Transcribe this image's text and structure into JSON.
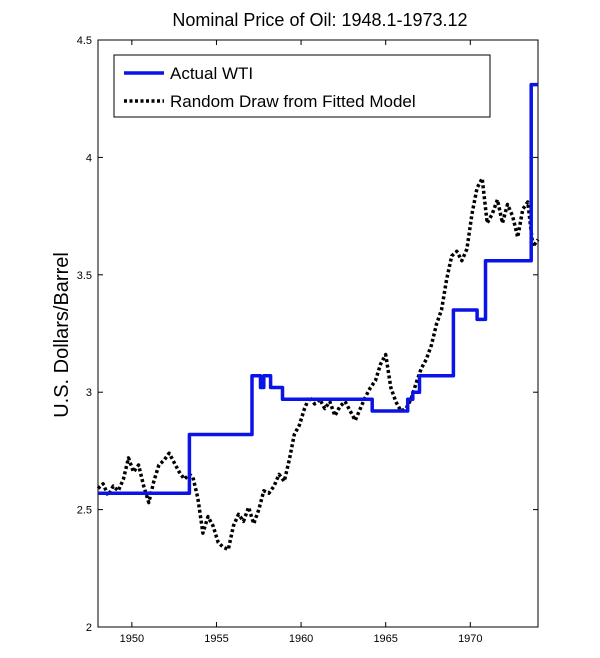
{
  "chart_data": {
    "type": "line",
    "title": "Nominal Price of Oil: 1948.1-1973.12",
    "xlabel": "",
    "ylabel": "U.S. Dollars/Barrel",
    "xlim": [
      1948,
      1974
    ],
    "ylim": [
      2,
      4.5
    ],
    "xticks": [
      1950,
      1955,
      1960,
      1965,
      1970
    ],
    "yticks": [
      2,
      2.5,
      3,
      3.5,
      4,
      4.5
    ],
    "ytick_labels": [
      "2",
      "2.5",
      "3",
      "3.5",
      "4",
      "4.5"
    ],
    "legend_position": "top-left",
    "series": [
      {
        "name": "Actual WTI",
        "style": "solid",
        "color": "#0a14e6",
        "x": [
          1948.0,
          1953.4,
          1953.4,
          1957.1,
          1957.1,
          1957.6,
          1957.6,
          1957.8,
          1957.8,
          1958.2,
          1958.2,
          1958.9,
          1958.9,
          1964.2,
          1964.2,
          1966.3,
          1966.3,
          1966.6,
          1966.6,
          1967.0,
          1967.0,
          1967.6,
          1967.6,
          1969.0,
          1969.0,
          1970.4,
          1970.4,
          1970.9,
          1970.9,
          1973.6,
          1973.6,
          1974.0
        ],
        "y": [
          2.57,
          2.57,
          2.82,
          2.82,
          3.07,
          3.07,
          3.02,
          3.02,
          3.07,
          3.07,
          3.02,
          3.02,
          2.97,
          2.97,
          2.92,
          2.92,
          2.97,
          2.97,
          3.0,
          3.0,
          3.07,
          3.07,
          3.07,
          3.07,
          3.35,
          3.35,
          3.31,
          3.31,
          3.56,
          3.56,
          4.31,
          4.31
        ]
      },
      {
        "name": "Random Draw from Fitted Model",
        "style": "dotted",
        "color": "#000000",
        "x": [
          1948.0,
          1948.3,
          1948.6,
          1948.9,
          1949.2,
          1949.5,
          1949.8,
          1950.1,
          1950.4,
          1950.7,
          1951.0,
          1951.3,
          1951.6,
          1951.9,
          1952.2,
          1952.5,
          1952.8,
          1953.1,
          1953.4,
          1953.6,
          1953.9,
          1954.2,
          1954.5,
          1954.8,
          1955.1,
          1955.4,
          1955.7,
          1956.0,
          1956.3,
          1956.6,
          1956.9,
          1957.2,
          1957.5,
          1957.8,
          1958.1,
          1958.4,
          1958.7,
          1959.0,
          1959.3,
          1959.6,
          1959.9,
          1960.2,
          1960.5,
          1960.8,
          1961.1,
          1961.4,
          1961.7,
          1962.0,
          1962.3,
          1962.6,
          1962.9,
          1963.2,
          1963.5,
          1963.8,
          1964.1,
          1964.4,
          1964.7,
          1965.0,
          1965.3,
          1965.6,
          1965.9,
          1966.2,
          1966.5,
          1966.8,
          1967.1,
          1967.4,
          1967.7,
          1968.0,
          1968.3,
          1968.6,
          1968.9,
          1969.2,
          1969.5,
          1969.8,
          1970.1,
          1970.4,
          1970.7,
          1971.0,
          1971.3,
          1971.6,
          1971.9,
          1972.2,
          1972.5,
          1972.8,
          1973.1,
          1973.4,
          1973.7,
          1974.0
        ],
        "y": [
          2.59,
          2.61,
          2.56,
          2.6,
          2.58,
          2.63,
          2.72,
          2.66,
          2.69,
          2.6,
          2.53,
          2.62,
          2.69,
          2.71,
          2.74,
          2.7,
          2.66,
          2.63,
          2.65,
          2.64,
          2.55,
          2.4,
          2.47,
          2.43,
          2.36,
          2.34,
          2.33,
          2.43,
          2.48,
          2.45,
          2.51,
          2.44,
          2.5,
          2.58,
          2.57,
          2.6,
          2.65,
          2.62,
          2.71,
          2.82,
          2.86,
          2.93,
          2.98,
          2.95,
          2.97,
          2.93,
          2.96,
          2.9,
          2.94,
          2.96,
          2.92,
          2.88,
          2.93,
          2.98,
          3.02,
          3.05,
          3.12,
          3.16,
          3.02,
          2.96,
          2.92,
          2.93,
          2.97,
          3.04,
          3.1,
          3.14,
          3.2,
          3.29,
          3.35,
          3.48,
          3.58,
          3.6,
          3.56,
          3.61,
          3.76,
          3.87,
          3.91,
          3.72,
          3.76,
          3.82,
          3.72,
          3.8,
          3.75,
          3.66,
          3.78,
          3.81,
          3.62,
          3.65
        ]
      }
    ]
  }
}
